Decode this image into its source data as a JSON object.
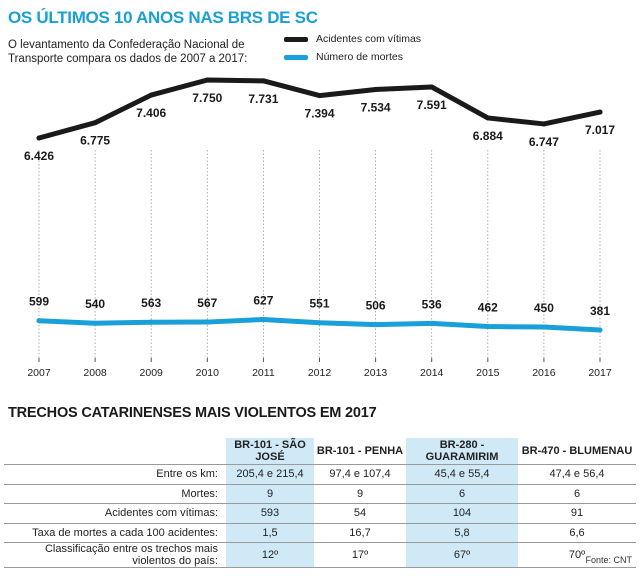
{
  "title": "OS ÚLTIMOS 10 ANOS NAS BRS DE SC",
  "subtitle": "O levantamento da Confederação Nacional de Transporte compara os dados de 2007 a 2017:",
  "colors": {
    "accent": "#1aa0d8",
    "acidentes": "#1a1a1a",
    "mortes": "#1aa0d8",
    "highlight": "#cfe9f7"
  },
  "chart_data": {
    "type": "line",
    "x": [
      "2007",
      "2008",
      "2009",
      "2010",
      "2011",
      "2012",
      "2013",
      "2014",
      "2015",
      "2016",
      "2017"
    ],
    "series": [
      {
        "name": "Acidentes com vítimas",
        "values": [
          6426,
          6775,
          7406,
          7750,
          7731,
          7394,
          7534,
          7591,
          6884,
          6747,
          7017
        ],
        "labels": [
          "6.426",
          "6.775",
          "7.406",
          "7.750",
          "7.731",
          "7.394",
          "7.534",
          "7.591",
          "6.884",
          "6.747",
          "7.017"
        ]
      },
      {
        "name": "Número de mortes",
        "values": [
          599,
          540,
          563,
          567,
          627,
          551,
          506,
          536,
          462,
          450,
          381
        ],
        "labels": [
          "599",
          "540",
          "563",
          "567",
          "627",
          "551",
          "506",
          "536",
          "462",
          "450",
          "381"
        ]
      }
    ],
    "grid": "vertical",
    "legend": "top-center"
  },
  "legend": {
    "acidentes": "Acidentes com vítimas",
    "mortes": "Número de mortes"
  },
  "table": {
    "title": "TRECHOS CATARINENSES MAIS VIOLENTOS EM 2017",
    "columns": [
      "BR-101 - SÃO JOSÉ",
      "BR-101 - PENHA",
      "BR-280 - GUARAMIRIM",
      "BR-470 - BLUMENAU"
    ],
    "rows": [
      {
        "label": "Entre os km:",
        "values": [
          "205,4 e 215,4",
          "97,4 e 107,4",
          "45,4 e 55,4",
          "47,4 e 56,4"
        ]
      },
      {
        "label": "Mortes:",
        "values": [
          "9",
          "9",
          "6",
          "6"
        ]
      },
      {
        "label": "Acidentes com vítimas:",
        "values": [
          "593",
          "54",
          "104",
          "91"
        ]
      },
      {
        "label": "Taxa de mortes a cada 100 acidentes:",
        "values": [
          "1,5",
          "16,7",
          "5,8",
          "6,6"
        ]
      },
      {
        "label": "Classificação entre os trechos mais violentos do país:",
        "values": [
          "12º",
          "17º",
          "67º",
          "70º"
        ]
      }
    ]
  },
  "source": "Fonte: CNT"
}
